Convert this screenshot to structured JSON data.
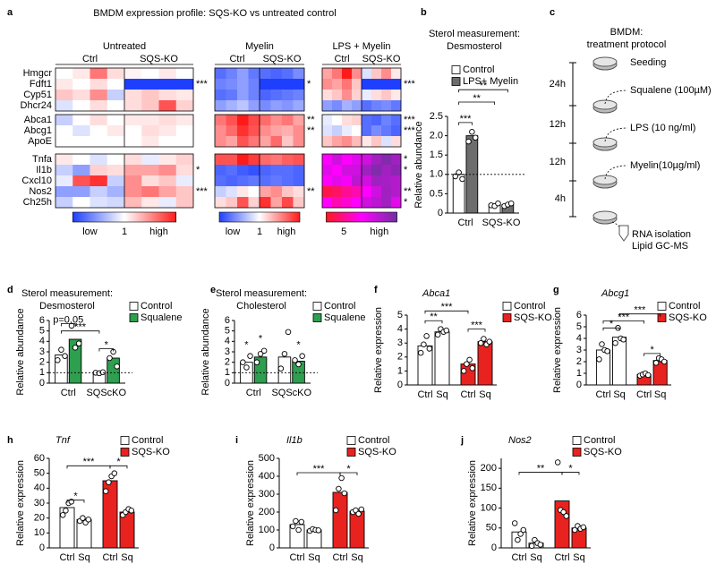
{
  "chart_data": [
    {
      "type": "heatmap",
      "label": "a",
      "title": "BMDM expression profile: SQS-KO vs untreated control",
      "row_groups": [
        [
          "Hmgcr",
          "Fdft1",
          "Cyp51",
          "Dhcr24"
        ],
        [
          "Abca1",
          "Abcg1",
          "ApoE"
        ],
        [
          "Tnfa",
          "Il1b",
          "Cxcl10",
          "Nos2",
          "Ch25h"
        ]
      ],
      "columns": [
        "Ctrl",
        "SQS-KO"
      ],
      "panels": [
        {
          "title": "Untreated",
          "colorbar": {
            "colors": [
              "#1f3fff",
              "#ffffff",
              "#ff1a1a"
            ],
            "range": [
              -2,
              2
            ],
            "labels": [
              "low",
              "1",
              "high"
            ]
          },
          "stars": [
            null,
            "***",
            null,
            null,
            null,
            null,
            null,
            null,
            "*",
            null,
            "***",
            null
          ],
          "values": [
            [
              0,
              0.2,
              1.2,
              0.3,
              0.1,
              0,
              0.2,
              0
            ],
            [
              0.2,
              0,
              0.3,
              0,
              -2,
              -2,
              -2,
              -2
            ],
            [
              0.5,
              0.3,
              1,
              -0.5,
              0.3,
              0.5,
              0.3,
              0.2
            ],
            [
              -0.3,
              0,
              0.3,
              0,
              0.3,
              0.5,
              1.5,
              0.4
            ],
            [
              -0.5,
              0,
              0.3,
              0,
              0.2,
              0.2,
              0.3,
              0.2
            ],
            [
              0,
              -0.3,
              0,
              0.2,
              0,
              0.3,
              0.2,
              0
            ],
            [
              0,
              0,
              0,
              0,
              0,
              0.2,
              0,
              0
            ],
            [
              0.2,
              0,
              -0.3,
              0,
              0.3,
              -0.2,
              0.2,
              0.4
            ],
            [
              -0.5,
              -1,
              0.4,
              0.3,
              0.8,
              0.8,
              1,
              0.3
            ],
            [
              -0.2,
              1.5,
              1.8,
              -0.5,
              1,
              0.3,
              0.5,
              -0.2
            ],
            [
              -1,
              -1,
              -0.5,
              -0.8,
              1,
              1.2,
              0.8,
              0.5
            ],
            [
              -0.5,
              0,
              -0.3,
              -0.4,
              0.6,
              0.2,
              -0.2,
              0.5
            ]
          ]
        },
        {
          "title": "Myelin",
          "colorbar": {
            "colors": [
              "#1f3fff",
              "#ffffff",
              "#ff1a1a"
            ],
            "range": [
              -2,
              2
            ],
            "labels": [
              "low",
              "1",
              "high"
            ]
          },
          "stars": [
            null,
            "*",
            null,
            null,
            "**",
            "**",
            null,
            null,
            null,
            null,
            "**",
            null
          ],
          "values": [
            [
              -1.5,
              -1.3,
              -1,
              -1.4,
              -1.5,
              -1.6,
              -1.5,
              -1.2
            ],
            [
              -1.3,
              -1.2,
              -1,
              -1.3,
              -2,
              -2,
              -2,
              -2
            ],
            [
              -1.5,
              -1.4,
              -1,
              -1.3,
              -1.6,
              -1.5,
              -1.4,
              -1.3
            ],
            [
              -1,
              -0.8,
              -0.6,
              -1,
              -1.2,
              -1,
              -1.1,
              -0.9
            ],
            [
              1.2,
              1.5,
              2,
              1.6,
              1.3,
              1,
              1.2,
              0.8
            ],
            [
              1,
              1.3,
              1.8,
              1.5,
              1,
              0.8,
              0.7,
              1
            ],
            [
              1,
              0.8,
              1.5,
              1.2,
              0.8,
              1.3,
              0.5,
              1
            ],
            [
              1.5,
              1.5,
              2,
              1.7,
              1.3,
              1.2,
              1.4,
              1.5
            ],
            [
              -1.6,
              -1.5,
              -1.7,
              -1.8,
              -1.6,
              -1.5,
              -1.5,
              -1.6
            ],
            [
              -1.5,
              -1.6,
              -1.5,
              -1.4,
              -1.5,
              -1.4,
              -1.5,
              -1.6
            ],
            [
              -0.5,
              -0.3,
              0.2,
              0,
              0.8,
              1,
              0.5,
              0.3
            ],
            [
              0.3,
              0.5,
              1.5,
              0.4,
              1.8,
              0.8,
              1.6,
              0.5
            ]
          ]
        },
        {
          "title": "LPS + Myelin",
          "colorbar": {
            "colors": [
              "#ff1a1a",
              "#ff00ff",
              "#7030a0"
            ],
            "range": [
              4,
              7
            ],
            "labels": [
              "5",
              "high"
            ]
          },
          "stars": [
            null,
            "***",
            null,
            null,
            "***",
            "***",
            null,
            "*",
            "*",
            null,
            "**",
            "*"
          ],
          "values": [
            [
              0.8,
              1.2,
              2,
              1,
              -0.3,
              0.5,
              1,
              0.2
            ],
            [
              1,
              0.8,
              1.2,
              0.5,
              -2,
              -2,
              -2,
              -2
            ],
            [
              0.3,
              0.5,
              1,
              0.4,
              -0.2,
              0.3,
              0.5,
              0.2
            ],
            [
              -1,
              -1.2,
              -0.8,
              -1,
              -1.5,
              -1.3,
              -1.2,
              -1.4
            ],
            [
              -0.2,
              0,
              0.3,
              0.4,
              -1.5,
              -1.6,
              -1.3,
              -1.5
            ],
            [
              -0.3,
              -0.5,
              -0.2,
              0,
              -1.5,
              -1.2,
              -1.4,
              -1.6
            ],
            [
              0.5,
              0.8,
              1,
              0.6,
              0.2,
              0.5,
              -0.3,
              0.3
            ],
            [
              5.5,
              6,
              5.5,
              5.8,
              6,
              6.5,
              6.8,
              6.5
            ],
            [
              5.8,
              5.5,
              6,
              6,
              6.5,
              6.8,
              6.5,
              6.7
            ],
            [
              5.5,
              5.8,
              5.6,
              6.2,
              6,
              6.5,
              6.4,
              6.3
            ],
            [
              4.3,
              4.5,
              4.8,
              5,
              5.5,
              6,
              6.5,
              6.3
            ],
            [
              5.5,
              5,
              5.2,
              5.5,
              6,
              6.2,
              6.5,
              5.8
            ]
          ]
        }
      ]
    },
    {
      "type": "groupedbar",
      "label": "b",
      "title": [
        "Sterol measurement:",
        "Desmosterol"
      ],
      "ylabel": "Relative abundance",
      "categories": [
        "Ctrl",
        "SQS-KO"
      ],
      "series": [
        {
          "name": "Control",
          "color": "#ffffff",
          "values": [
            1.0,
            0.22
          ],
          "points": [
            [
              0.95,
              1.05,
              0.88
            ],
            [
              0.2,
              0.18,
              0.25
            ]
          ]
        },
        {
          "name": "LPS+ Myelin",
          "color": "#6d6d6d",
          "values": [
            2.0,
            0.22
          ],
          "points": [
            [
              1.85,
              2.1,
              1.95
            ],
            [
              0.18,
              0.22,
              0.25
            ]
          ]
        }
      ],
      "ylim": [
        0,
        2.5
      ],
      "yticks": [
        0,
        0.5,
        {
          "value": 1,
          "label": "1.0"
        },
        1.5,
        {
          "value": 2,
          "label": "2.0"
        },
        2.5
      ],
      "reference_line": 1,
      "annotations": [
        "***",
        "**",
        "**"
      ]
    },
    {
      "type": "groupedbar",
      "label": "d",
      "title": [
        "Sterol measurement:",
        "Desmosterol"
      ],
      "ylabel": "Relative abundance",
      "categories": [
        "Ctrl",
        "SQScKO"
      ],
      "series": [
        {
          "name": "Control",
          "color": "#ffffff",
          "values": [
            2.7,
            1.0
          ],
          "points": [
            [
              2.2,
              3.2,
              2.6
            ],
            [
              1.0,
              0.95,
              1.05
            ]
          ]
        },
        {
          "name": "Squalene",
          "color": "#2e9e4f",
          "values": [
            4.2,
            2.4
          ],
          "points": [
            [
              5.5,
              3.4,
              3.8
            ],
            [
              2.4,
              3.0,
              1.6
            ]
          ]
        }
      ],
      "ylim": [
        0,
        6
      ],
      "yticks": [
        0,
        1,
        2,
        3,
        4,
        5,
        6
      ],
      "reference_line": 1,
      "annotations": [
        "p=0.05",
        "***",
        "*"
      ]
    },
    {
      "type": "groupedbar",
      "label": "e",
      "title": [
        "Sterol measurement:",
        "Cholesterol"
      ],
      "ylabel": "Relative abundance",
      "categories": [
        "Ctrl",
        "SQScKO"
      ],
      "series": [
        {
          "name": "Control",
          "color": "#ffffff",
          "values": [
            2.0,
            2.5
          ],
          "points": [
            [
              2.0,
              1.5,
              2.6
            ],
            [
              1.4,
              2.8,
              4.9
            ]
          ]
        },
        {
          "name": "Squalene",
          "color": "#2e9e4f",
          "values": [
            2.5,
            2.1
          ],
          "points": [
            [
              2.0,
              2.8,
              3.1
            ],
            [
              2.2,
              1.8,
              2.6
            ]
          ]
        }
      ],
      "ylim": [
        0,
        6
      ],
      "yticks": [
        0,
        1,
        2,
        3,
        4,
        5,
        6
      ],
      "reference_line": 1,
      "annotations": [
        "*",
        "*",
        "*"
      ]
    },
    {
      "type": "seriesbar",
      "label": "f",
      "title": "Abca1",
      "ylabel": "Relative expression",
      "categories": [
        "Ctrl",
        "Sq"
      ],
      "category_colors": [
        "#000000",
        "#2e9e4f"
      ],
      "series": [
        {
          "name": "Control",
          "color": "#ffffff",
          "values": [
            2.8,
            3.8
          ],
          "points": [
            [
              2.3,
              2.9,
              3.5,
              2.6
            ],
            [
              3.6,
              4.0,
              3.8,
              3.9
            ]
          ]
        },
        {
          "name": "SQS-KO",
          "color": "#e8221f",
          "values": [
            1.5,
            3.1
          ],
          "points": [
            [
              1.0,
              1.5,
              1.8,
              1.2
            ],
            [
              3.0,
              3.3,
              2.9,
              3.1
            ]
          ]
        }
      ],
      "ylim": [
        0,
        5
      ],
      "yticks": [
        0,
        1,
        2,
        3,
        4,
        5
      ],
      "annotations": [
        "***",
        "**",
        "***"
      ]
    },
    {
      "type": "seriesbar",
      "label": "g",
      "title": "Abcg1",
      "ylabel": "Relative expression",
      "categories": [
        "Ctrl",
        "Sq"
      ],
      "category_colors": [
        "#000000",
        "#2e9e4f"
      ],
      "series": [
        {
          "name": "Control",
          "color": "#ffffff",
          "values": [
            3.0,
            4.1
          ],
          "points": [
            [
              2.2,
              3.5,
              3.0,
              2.9
            ],
            [
              3.6,
              4.9,
              4.0,
              3.9
            ]
          ]
        },
        {
          "name": "SQS-KO",
          "color": "#e8221f",
          "values": [
            0.9,
            2.1
          ],
          "points": [
            [
              0.8,
              0.9,
              1.0,
              0.85
            ],
            [
              1.9,
              2.3,
              2.2,
              2.0
            ]
          ]
        }
      ],
      "ylim": [
        0,
        6
      ],
      "yticks": [
        0,
        1,
        2,
        3,
        4,
        5,
        6
      ],
      "annotations": [
        "*",
        "***",
        "***",
        "*"
      ]
    },
    {
      "type": "seriesbar",
      "label": "h",
      "title": "Tnf",
      "ylabel": "Relative expression",
      "categories": [
        "Ctrl",
        "Sq"
      ],
      "category_colors": [
        "#000000",
        "#2e9e4f"
      ],
      "series": [
        {
          "name": "Control",
          "color": "#ffffff",
          "values": [
            27,
            19
          ],
          "points": [
            [
              22,
              25,
              30,
              31
            ],
            [
              18,
              20,
              17,
              19
            ]
          ]
        },
        {
          "name": "SQS-KO",
          "color": "#e8221f",
          "values": [
            45,
            24
          ],
          "points": [
            [
              38,
              44,
              48,
              50
            ],
            [
              22,
              24,
              26,
              25
            ]
          ]
        }
      ],
      "ylim": [
        0,
        60
      ],
      "yticks": [
        0,
        10,
        20,
        30,
        40,
        50,
        60
      ],
      "annotations": [
        "*",
        "***",
        "*"
      ]
    },
    {
      "type": "seriesbar",
      "label": "i",
      "title": "Il1b",
      "ylabel": "Relative expression",
      "categories": [
        "Ctrl",
        "Sq"
      ],
      "category_colors": [
        "#000000",
        "#2e9e4f"
      ],
      "series": [
        {
          "name": "Control",
          "color": "#ffffff",
          "values": [
            130,
            100
          ],
          "points": [
            [
              120,
              150,
              100,
              145
            ],
            [
              95,
              105,
              100,
              98
            ]
          ]
        },
        {
          "name": "SQS-KO",
          "color": "#e8221f",
          "values": [
            310,
            205
          ],
          "points": [
            [
              210,
              330,
              390,
              305
            ],
            [
              200,
              210,
              190,
              215
            ]
          ]
        }
      ],
      "ylim": [
        0,
        500
      ],
      "yticks": [
        0,
        100,
        200,
        300,
        400,
        500
      ],
      "annotations": [
        "***",
        "*"
      ]
    },
    {
      "type": "seriesbar",
      "label": "j",
      "title": "Nos2",
      "ylabel": "Relative expression",
      "categories": [
        "Ctrl",
        "Sq"
      ],
      "category_colors": [
        "#000000",
        "#2e9e4f"
      ],
      "series": [
        {
          "name": "Control",
          "color": "#ffffff",
          "values": [
            40,
            12
          ],
          "points": [
            [
              62,
              20,
              35,
              45
            ],
            [
              5,
              20,
              12,
              8
            ]
          ]
        },
        {
          "name": "SQS-KO",
          "color": "#e8221f",
          "values": [
            118,
            50
          ],
          "points": [
            [
              215,
              95,
              90,
              80
            ],
            [
              45,
              55,
              48,
              52
            ]
          ]
        }
      ],
      "ylim": [
        0,
        225
      ],
      "yticks": [
        0,
        50,
        100,
        150,
        200
      ],
      "annotations": [
        "**",
        "*"
      ]
    }
  ],
  "protocol": {
    "label": "c",
    "title": [
      "BMDM:",
      "treatment protocol"
    ],
    "steps": [
      "Seeding",
      "Squalene (100µM)",
      "LPS (10 ng/ml)",
      "Myelin(10µg/ml)"
    ],
    "intervals": [
      "24h",
      "12h",
      "12h",
      "4h"
    ],
    "readouts": [
      "RNA isolation",
      "Lipid GC-MS"
    ]
  }
}
